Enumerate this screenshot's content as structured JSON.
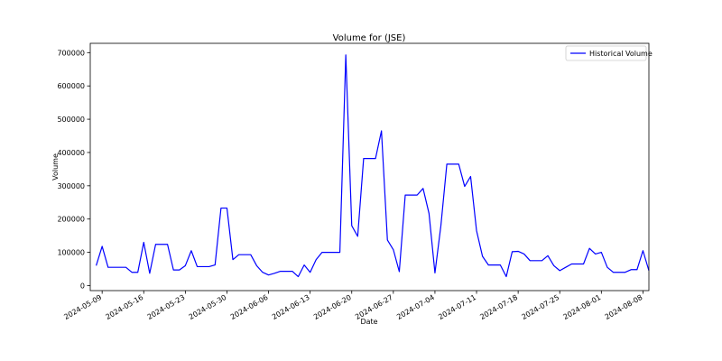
{
  "chart_data": {
    "type": "line",
    "title": "Volume for  (JSE)",
    "xlabel": "Date",
    "ylabel": "Volume",
    "x_start": "2024-05-07",
    "x_end": "2024-08-09",
    "ylim": [
      -15000,
      728000
    ],
    "yticks": [
      0,
      100000,
      200000,
      300000,
      400000,
      500000,
      600000,
      700000
    ],
    "ytick_labels": [
      "0",
      "100000",
      "200000",
      "300000",
      "400000",
      "500000",
      "600000",
      "700000"
    ],
    "xticks": [
      "2024-05-09",
      "2024-05-16",
      "2024-05-23",
      "2024-05-30",
      "2024-06-06",
      "2024-06-13",
      "2024-06-20",
      "2024-06-27",
      "2024-07-04",
      "2024-07-11",
      "2024-07-18",
      "2024-07-25",
      "2024-08-01",
      "2024-08-08"
    ],
    "grid": false,
    "legend": {
      "position": "top-right"
    },
    "series": [
      {
        "name": "Historical Volume",
        "color": "#0000ff",
        "points": [
          [
            "2024-05-08",
            60000
          ],
          [
            "2024-05-09",
            118000
          ],
          [
            "2024-05-10",
            55000
          ],
          [
            "2024-05-13",
            55000
          ],
          [
            "2024-05-14",
            40000
          ],
          [
            "2024-05-15",
            40000
          ],
          [
            "2024-05-16",
            130000
          ],
          [
            "2024-05-17",
            37000
          ],
          [
            "2024-05-18",
            124000
          ],
          [
            "2024-05-20",
            124000
          ],
          [
            "2024-05-21",
            47000
          ],
          [
            "2024-05-22",
            47000
          ],
          [
            "2024-05-23",
            60000
          ],
          [
            "2024-05-24",
            105000
          ],
          [
            "2024-05-25",
            57000
          ],
          [
            "2024-05-27",
            57000
          ],
          [
            "2024-05-28",
            62000
          ],
          [
            "2024-05-29",
            233000
          ],
          [
            "2024-05-30",
            233000
          ],
          [
            "2024-05-31",
            78000
          ],
          [
            "2024-06-01",
            93000
          ],
          [
            "2024-06-03",
            93000
          ],
          [
            "2024-06-04",
            60000
          ],
          [
            "2024-06-05",
            40000
          ],
          [
            "2024-06-06",
            32000
          ],
          [
            "2024-06-07",
            37000
          ],
          [
            "2024-06-08",
            43000
          ],
          [
            "2024-06-10",
            43000
          ],
          [
            "2024-06-11",
            27000
          ],
          [
            "2024-06-12",
            62000
          ],
          [
            "2024-06-13",
            40000
          ],
          [
            "2024-06-14",
            78000
          ],
          [
            "2024-06-15",
            100000
          ],
          [
            "2024-06-18",
            100000
          ],
          [
            "2024-06-19",
            693000
          ],
          [
            "2024-06-20",
            180000
          ],
          [
            "2024-06-21",
            148000
          ],
          [
            "2024-06-22",
            382000
          ],
          [
            "2024-06-24",
            382000
          ],
          [
            "2024-06-25",
            465000
          ],
          [
            "2024-06-26",
            137000
          ],
          [
            "2024-06-27",
            108000
          ],
          [
            "2024-06-28",
            42000
          ],
          [
            "2024-06-29",
            272000
          ],
          [
            "2024-07-01",
            272000
          ],
          [
            "2024-07-02",
            292000
          ],
          [
            "2024-07-03",
            217000
          ],
          [
            "2024-07-04",
            38000
          ],
          [
            "2024-07-05",
            180000
          ],
          [
            "2024-07-06",
            365000
          ],
          [
            "2024-07-08",
            365000
          ],
          [
            "2024-07-09",
            298000
          ],
          [
            "2024-07-10",
            328000
          ],
          [
            "2024-07-11",
            165000
          ],
          [
            "2024-07-12",
            88000
          ],
          [
            "2024-07-13",
            62000
          ],
          [
            "2024-07-15",
            62000
          ],
          [
            "2024-07-16",
            27000
          ],
          [
            "2024-07-17",
            102000
          ],
          [
            "2024-07-18",
            103000
          ],
          [
            "2024-07-19",
            95000
          ],
          [
            "2024-07-20",
            75000
          ],
          [
            "2024-07-22",
            75000
          ],
          [
            "2024-07-23",
            90000
          ],
          [
            "2024-07-24",
            60000
          ],
          [
            "2024-07-25",
            45000
          ],
          [
            "2024-07-26",
            55000
          ],
          [
            "2024-07-27",
            65000
          ],
          [
            "2024-07-29",
            65000
          ],
          [
            "2024-07-30",
            112000
          ],
          [
            "2024-07-31",
            95000
          ],
          [
            "2024-08-01",
            100000
          ],
          [
            "2024-08-02",
            55000
          ],
          [
            "2024-08-03",
            40000
          ],
          [
            "2024-08-05",
            40000
          ],
          [
            "2024-08-06",
            48000
          ],
          [
            "2024-08-07",
            48000
          ],
          [
            "2024-08-08",
            105000
          ],
          [
            "2024-08-09",
            45000
          ]
        ]
      }
    ]
  }
}
